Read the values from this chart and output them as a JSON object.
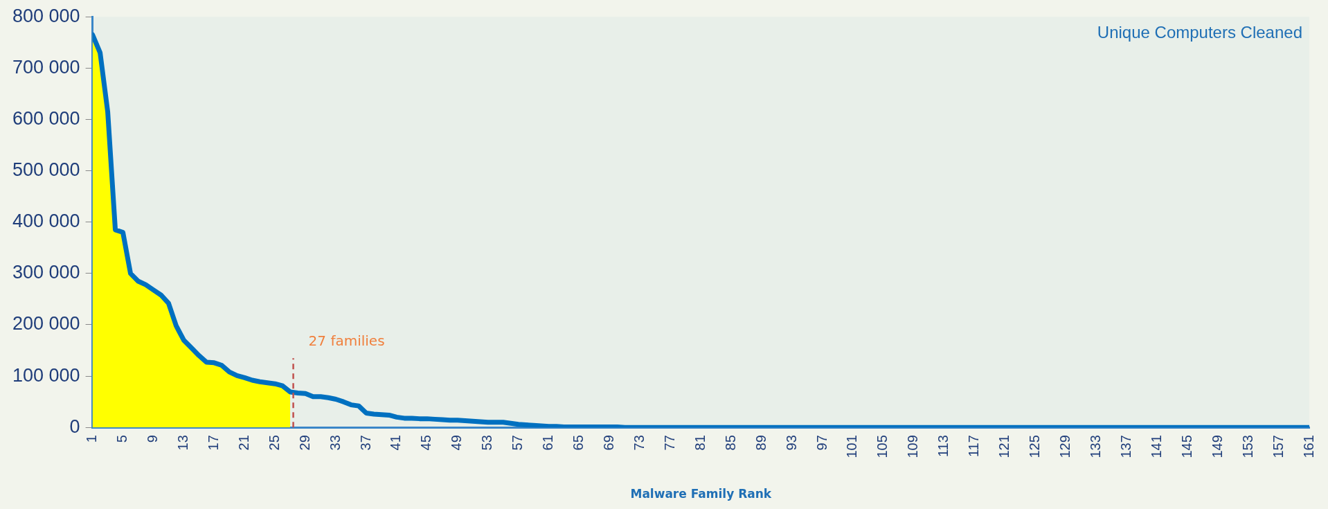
{
  "chart_data": {
    "type": "line",
    "title": "Unique Computers Cleaned",
    "xlabel": "Malware Family Rank",
    "marker": "none",
    "x": [
      1,
      2,
      3,
      4,
      5,
      6,
      7,
      8,
      9,
      10,
      11,
      12,
      13,
      14,
      15,
      16,
      17,
      18,
      19,
      20,
      21,
      22,
      23,
      24,
      25,
      26,
      27,
      28,
      29,
      30,
      31,
      32,
      33,
      34,
      35,
      36,
      37,
      38,
      39,
      40,
      41,
      42,
      43,
      44,
      45,
      46,
      47,
      48,
      49,
      50,
      51,
      52,
      53,
      54,
      55,
      56,
      57,
      58,
      59,
      60,
      61,
      62,
      63,
      64,
      65,
      66,
      67,
      68,
      69,
      70,
      71,
      72,
      73,
      74,
      75,
      76,
      77,
      78,
      79,
      80,
      81,
      82,
      83,
      84,
      85,
      86,
      87,
      88,
      89,
      90,
      91,
      92,
      93,
      94,
      95,
      96,
      97,
      98,
      99,
      100,
      101,
      102,
      103,
      104,
      105,
      106,
      107,
      108,
      109,
      110,
      111,
      112,
      113,
      114,
      115,
      116,
      117,
      118,
      119,
      120,
      121,
      122,
      123,
      124,
      125,
      126,
      127,
      128,
      129,
      130,
      131,
      132,
      133,
      134,
      135,
      136,
      137,
      138,
      139,
      140,
      141,
      142,
      143,
      144,
      145,
      146,
      147,
      148,
      149,
      150,
      151,
      152,
      153,
      154,
      155,
      156,
      157,
      158,
      159,
      160,
      161
    ],
    "xlim": [
      1,
      161
    ],
    "xticks": [
      1,
      5,
      9,
      13,
      17,
      21,
      25,
      29,
      33,
      37,
      41,
      45,
      49,
      53,
      57,
      61,
      65,
      69,
      73,
      77,
      81,
      85,
      89,
      93,
      97,
      101,
      105,
      109,
      113,
      117,
      121,
      125,
      129,
      133,
      137,
      141,
      145,
      149,
      153,
      157,
      161
    ],
    "ylim": [
      0,
      800000
    ],
    "yticks": [
      {
        "value": 0,
        "label": "0"
      },
      {
        "value": 100000,
        "label": "100 000"
      },
      {
        "value": 200000,
        "label": "200 000"
      },
      {
        "value": 300000,
        "label": "300 000"
      },
      {
        "value": 400000,
        "label": "400 000"
      },
      {
        "value": 500000,
        "label": "500 000"
      },
      {
        "value": 600000,
        "label": "600 000"
      },
      {
        "value": 700000,
        "label": "700 000"
      },
      {
        "value": 800000,
        "label": "800 000"
      }
    ],
    "series": [
      {
        "type": "area",
        "color": "#ffff00",
        "x": [
          1,
          2,
          3,
          4,
          5,
          6,
          7,
          8,
          9,
          10,
          11,
          12,
          13,
          14,
          15,
          16,
          17,
          18,
          19,
          20,
          21,
          22,
          23,
          24,
          25,
          26,
          27
        ],
        "values": [
          765000,
          730000,
          615000,
          385000,
          380000,
          300000,
          285000,
          278000,
          268000,
          258000,
          242000,
          198000,
          170000,
          155000,
          140000,
          127000,
          126000,
          121000,
          108000,
          101000,
          97000,
          92000,
          89000,
          87000,
          85000,
          81000,
          69000
        ]
      },
      {
        "type": "line",
        "color": "#0070c0",
        "values": [
          765000,
          730000,
          615000,
          385000,
          380000,
          300000,
          285000,
          278000,
          268000,
          258000,
          242000,
          198000,
          170000,
          155000,
          140000,
          127000,
          126000,
          121000,
          108000,
          101000,
          97000,
          92000,
          89000,
          87000,
          85000,
          81000,
          69000,
          67000,
          66000,
          60000,
          60000,
          58000,
          55000,
          50000,
          44000,
          42000,
          28000,
          26000,
          25000,
          24000,
          20000,
          18000,
          18000,
          17000,
          17000,
          16000,
          15000,
          14000,
          14000,
          13000,
          12000,
          11000,
          10000,
          10000,
          10000,
          8000,
          6000,
          5000,
          4000,
          3000,
          2000,
          2000,
          1000,
          1000,
          1000,
          1000,
          1000,
          1000,
          1000,
          1000,
          0,
          0,
          0,
          0,
          0,
          0,
          0,
          0,
          0,
          0,
          0,
          0,
          0,
          0,
          0,
          0,
          0,
          0,
          0,
          0,
          0,
          0,
          0,
          0,
          0,
          0,
          0,
          0,
          0,
          0,
          0,
          0,
          0,
          0,
          0,
          0,
          0,
          0,
          0,
          0,
          0,
          0,
          0,
          0,
          0,
          0,
          0,
          0,
          0,
          0,
          0,
          0,
          0,
          0,
          0,
          0,
          0,
          0,
          0,
          0,
          0,
          0,
          0,
          0,
          0,
          0,
          0,
          0,
          0,
          0,
          0,
          0,
          0,
          0,
          0,
          0,
          0,
          0,
          0,
          0,
          0,
          0,
          0,
          0,
          0,
          0,
          0,
          0,
          0,
          0,
          0
        ]
      }
    ],
    "ref_lines": [
      {
        "axis": "x",
        "value": 27.4,
        "label": "27 families",
        "color": "#c0504d",
        "line_style": "dashed"
      }
    ]
  }
}
